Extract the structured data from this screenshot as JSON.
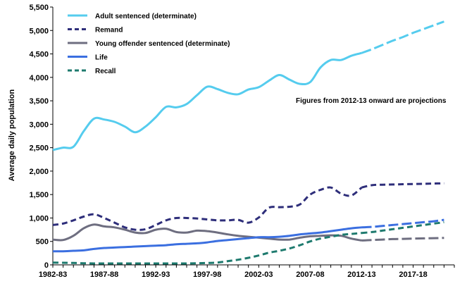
{
  "chart_data": {
    "type": "line",
    "title": "",
    "xlabel": "",
    "ylabel": "Average daily population",
    "ylim": [
      0,
      5500
    ],
    "yticks": [
      0,
      500,
      1000,
      1500,
      2000,
      2500,
      3000,
      3500,
      4000,
      4500,
      5000,
      5500
    ],
    "ytick_labels": [
      "0",
      "500",
      "1,000",
      "1,500",
      "2,000",
      "2,500",
      "3,000",
      "3,500",
      "4,000",
      "4,500",
      "5,000",
      "5,500"
    ],
    "x_start_year": 1982,
    "x_end_year": 2021,
    "xtick_labels": [
      "1982-83",
      "1987-88",
      "1992-93",
      "1997-98",
      "2002-03",
      "2007-08",
      "2012-13",
      "2017-18"
    ],
    "xtick_years": [
      1982,
      1987,
      1992,
      1997,
      2002,
      2007,
      2012,
      2017
    ],
    "projection_start_year": 2012,
    "annotation": "Figures from 2012-13 onward are projections",
    "legend_position": "top-left",
    "series": [
      {
        "name": "Adult sentenced (determinate)",
        "color": "#55CCEE",
        "style": "solid",
        "values": [
          2450,
          2500,
          2520,
          2850,
          3120,
          3100,
          3050,
          2950,
          2830,
          2950,
          3150,
          3370,
          3360,
          3430,
          3620,
          3800,
          3750,
          3670,
          3640,
          3740,
          3790,
          3930,
          4050,
          3950,
          3860,
          3900,
          4210,
          4370,
          4370,
          4460,
          4520,
          4600,
          4690,
          4780,
          4860,
          4950,
          5030,
          5110,
          5190
        ]
      },
      {
        "name": "Remand",
        "color": "#2E2E7A",
        "style": "dash",
        "values": [
          850,
          880,
          950,
          1030,
          1080,
          1000,
          900,
          800,
          750,
          760,
          850,
          950,
          1000,
          1000,
          990,
          970,
          950,
          950,
          960,
          900,
          1010,
          1220,
          1230,
          1240,
          1290,
          1500,
          1600,
          1650,
          1520,
          1480,
          1650,
          1700,
          1710,
          1715,
          1720,
          1725,
          1730,
          1735,
          1740
        ]
      },
      {
        "name": "Young offender sentenced (determinate)",
        "color": "#6E6E80",
        "style": "solid",
        "values": [
          540,
          530,
          620,
          780,
          860,
          820,
          800,
          750,
          690,
          680,
          750,
          770,
          700,
          690,
          730,
          720,
          690,
          650,
          620,
          600,
          580,
          560,
          540,
          540,
          580,
          610,
          620,
          630,
          620,
          560,
          520,
          530,
          540,
          550,
          555,
          560,
          565,
          570,
          575
        ]
      },
      {
        "name": "Life",
        "color": "#3B6FE0",
        "style": "solid",
        "values": [
          290,
          290,
          300,
          310,
          340,
          360,
          370,
          380,
          390,
          400,
          410,
          420,
          440,
          450,
          460,
          480,
          510,
          530,
          550,
          570,
          590,
          590,
          600,
          620,
          650,
          670,
          690,
          720,
          750,
          780,
          800,
          810,
          830,
          850,
          870,
          890,
          910,
          930,
          960
        ]
      },
      {
        "name": "Recall",
        "color": "#1E7A6E",
        "style": "dash",
        "values": [
          50,
          45,
          40,
          35,
          30,
          30,
          30,
          30,
          30,
          30,
          30,
          30,
          30,
          30,
          35,
          40,
          50,
          80,
          110,
          150,
          200,
          260,
          300,
          350,
          420,
          500,
          560,
          600,
          640,
          660,
          680,
          700,
          730,
          760,
          790,
          820,
          850,
          880,
          910
        ]
      }
    ]
  }
}
